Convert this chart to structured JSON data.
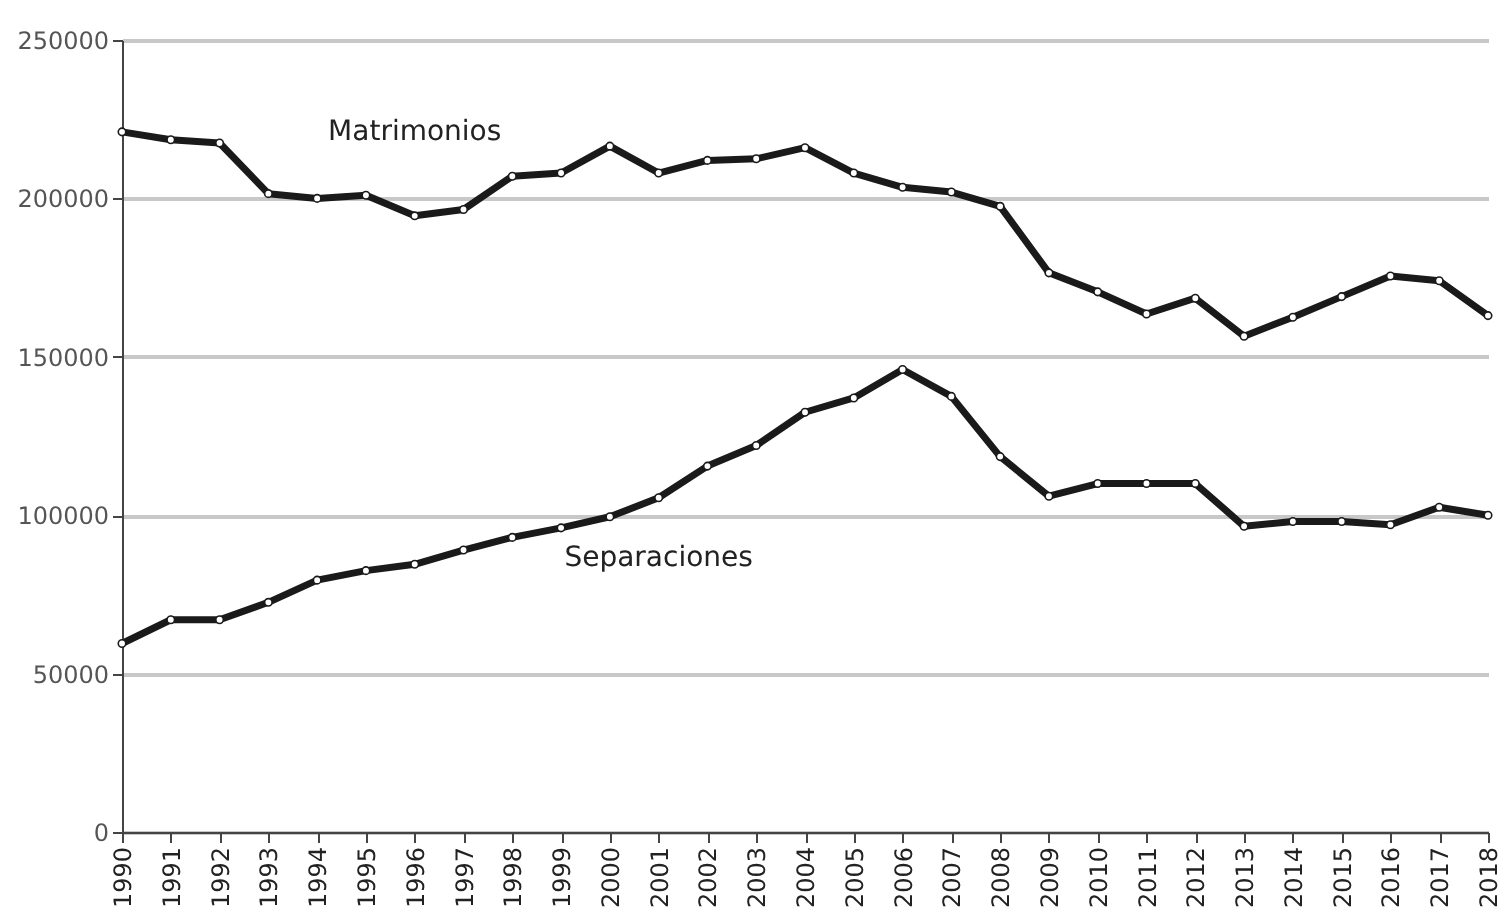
{
  "chart_data": {
    "type": "line",
    "categories": [
      "1990",
      "1991",
      "1992",
      "1993",
      "1994",
      "1995",
      "1996",
      "1997",
      "1998",
      "1999",
      "2000",
      "2001",
      "2002",
      "2003",
      "2004",
      "2005",
      "2006",
      "2007",
      "2008",
      "2009",
      "2010",
      "2011",
      "2012",
      "2013",
      "2014",
      "2015",
      "2016",
      "2017",
      "2018"
    ],
    "series": [
      {
        "name": "Matrimonios",
        "color": "#1a1a1a",
        "values": [
          221000,
          218500,
          217500,
          201500,
          200000,
          201000,
          194500,
          196500,
          207000,
          208000,
          216500,
          208000,
          212000,
          212500,
          216000,
          208000,
          203500,
          202000,
          197500,
          176500,
          170500,
          163500,
          168500,
          156500,
          162500,
          169000,
          175500,
          174000,
          163000
        ]
      },
      {
        "name": "Separaciones",
        "color": "#1a1a1a",
        "values": [
          59500,
          67000,
          67000,
          72500,
          79500,
          82500,
          84500,
          89000,
          93000,
          96000,
          99500,
          105500,
          115500,
          122000,
          132500,
          137000,
          146000,
          137500,
          118500,
          106000,
          110000,
          110000,
          110000,
          96500,
          98000,
          98000,
          97000,
          102500,
          100000
        ]
      }
    ],
    "ylim": [
      0,
      250000
    ],
    "yticks": [
      0,
      50000,
      100000,
      150000,
      200000,
      250000
    ],
    "grid": "y",
    "marker": "circle",
    "line_style": "solid"
  }
}
